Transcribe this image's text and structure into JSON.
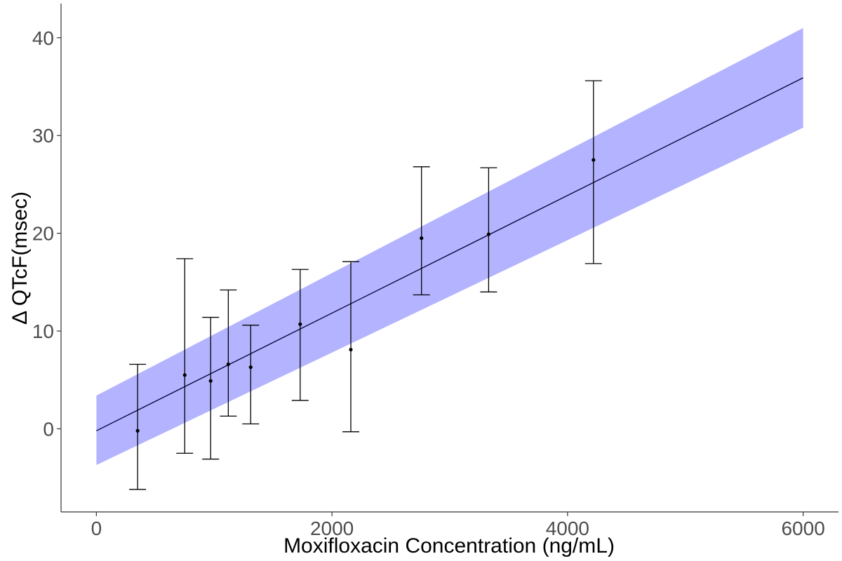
{
  "chart_data": {
    "type": "scatter",
    "title": "",
    "xlabel": "Moxifloxacin Concentration (ng/mL)",
    "ylabel": "Δ QTcF(msec)",
    "xlim": [
      -300,
      6300
    ],
    "ylim": [
      -8.5,
      43.5
    ],
    "x_ticks": [
      0,
      2000,
      4000,
      6000
    ],
    "y_ticks": [
      0,
      10,
      20,
      30,
      40
    ],
    "x_tick_labels": [
      "0",
      "2000",
      "4000",
      "6000"
    ],
    "y_tick_labels": [
      "0",
      "10",
      "20",
      "30",
      "40"
    ],
    "grid": false,
    "points": [
      {
        "x": 350,
        "y": -0.2,
        "lower": -6.2,
        "upper": 6.6
      },
      {
        "x": 750,
        "y": 5.5,
        "lower": -2.5,
        "upper": 17.4
      },
      {
        "x": 970,
        "y": 4.9,
        "lower": -3.1,
        "upper": 11.4
      },
      {
        "x": 1120,
        "y": 6.6,
        "lower": 1.3,
        "upper": 14.2
      },
      {
        "x": 1310,
        "y": 6.3,
        "lower": 0.5,
        "upper": 10.6
      },
      {
        "x": 1730,
        "y": 10.7,
        "lower": 2.9,
        "upper": 16.3
      },
      {
        "x": 2160,
        "y": 8.1,
        "lower": -0.3,
        "upper": 17.1
      },
      {
        "x": 2760,
        "y": 19.5,
        "lower": 13.7,
        "upper": 26.8
      },
      {
        "x": 3330,
        "y": 19.9,
        "lower": 14.0,
        "upper": 26.7
      },
      {
        "x": 4220,
        "y": 27.5,
        "lower": 16.9,
        "upper": 35.6
      }
    ],
    "fit_line": {
      "x": [
        0,
        6000
      ],
      "y": [
        -0.2,
        35.9
      ]
    },
    "confidence_band": {
      "x": [
        0,
        6000
      ],
      "lower": [
        -3.7,
        30.8
      ],
      "upper": [
        3.4,
        41.0
      ]
    },
    "colors": {
      "band": "#b3b3ff",
      "line": "#000033",
      "points": "#000000",
      "axis": "#333333"
    }
  }
}
